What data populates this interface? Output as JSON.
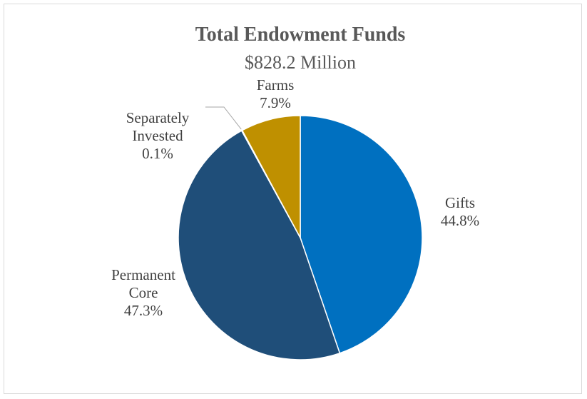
{
  "chart_data": {
    "type": "pie",
    "title": "Total Endowment Funds",
    "subtitle": "$828.2 Million",
    "start_angle_deg": 0,
    "direction": "clockwise",
    "slices": [
      {
        "label_lines": [
          "Gifts"
        ],
        "value": 44.8,
        "value_label": "44.8%",
        "color": "#0070C0"
      },
      {
        "label_lines": [
          "Permanent",
          "Core"
        ],
        "value": 47.3,
        "value_label": "47.3%",
        "color": "#1F4E79"
      },
      {
        "label_lines": [
          "Separately",
          "Invested"
        ],
        "value": 0.1,
        "value_label": "0.1%",
        "color": "#7F7F7F"
      },
      {
        "label_lines": [
          "Farms"
        ],
        "value": 7.9,
        "value_label": "7.9%",
        "color": "#BF9000"
      }
    ],
    "legend": "none"
  }
}
